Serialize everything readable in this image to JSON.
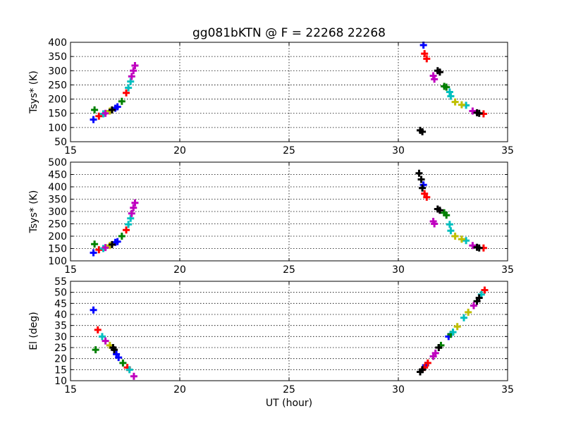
{
  "chart_data": {
    "type": "scatter",
    "title": "gg081bKTN @ F = 22268 22268",
    "marker": "plus",
    "xlabel": "UT (hour)",
    "color_cycle": [
      "#0000ff",
      "#008000",
      "#ff0000",
      "#00bfbf",
      "#bf00bf",
      "#bfbf00",
      "#000000"
    ],
    "panels": [
      {
        "ylabel": "Tsys* (K)",
        "xlim": [
          15,
          35
        ],
        "ylim": [
          50,
          400
        ],
        "xticks": [
          15,
          20,
          25,
          30,
          35
        ],
        "yticks": [
          50,
          100,
          150,
          200,
          250,
          300,
          350,
          400
        ],
        "grid": true,
        "series": [
          {
            "color": "#0000ff",
            "points": [
              [
                16.05,
                128
              ],
              [
                17.05,
                168
              ],
              [
                17.15,
                173
              ],
              [
                31.15,
                390
              ]
            ]
          },
          {
            "color": "#008000",
            "points": [
              [
                16.1,
                162
              ],
              [
                17.35,
                192
              ],
              [
                32.1,
                245
              ],
              [
                32.2,
                242
              ]
            ]
          },
          {
            "color": "#ff0000",
            "points": [
              [
                16.3,
                140
              ],
              [
                17.55,
                222
              ],
              [
                31.2,
                360
              ],
              [
                31.3,
                342
              ],
              [
                33.9,
                148
              ]
            ]
          },
          {
            "color": "#00bfbf",
            "points": [
              [
                16.5,
                148
              ],
              [
                17.65,
                240
              ],
              [
                17.75,
                262
              ],
              [
                32.35,
                225
              ],
              [
                32.4,
                210
              ],
              [
                33.1,
                178
              ]
            ]
          },
          {
            "color": "#bf00bf",
            "points": [
              [
                16.6,
                150
              ],
              [
                17.8,
                280
              ],
              [
                17.88,
                300
              ],
              [
                17.95,
                318
              ],
              [
                31.6,
                282
              ],
              [
                31.65,
                270
              ],
              [
                33.4,
                158
              ]
            ]
          },
          {
            "color": "#bfbf00",
            "points": [
              [
                16.8,
                158
              ],
              [
                32.6,
                190
              ],
              [
                32.9,
                180
              ]
            ]
          },
          {
            "color": "#000000",
            "points": [
              [
                16.9,
                162
              ],
              [
                31.0,
                90
              ],
              [
                31.1,
                85
              ],
              [
                31.8,
                300
              ],
              [
                31.9,
                295
              ],
              [
                33.6,
                152
              ],
              [
                33.7,
                150
              ]
            ]
          }
        ]
      },
      {
        "ylabel": "Tsys* (K)",
        "xlim": [
          15,
          35
        ],
        "ylim": [
          100,
          500
        ],
        "xticks": [
          15,
          20,
          25,
          30,
          35
        ],
        "yticks": [
          100,
          150,
          200,
          250,
          300,
          350,
          400,
          450,
          500
        ],
        "grid": true,
        "series": [
          {
            "color": "#0000ff",
            "points": [
              [
                16.05,
                133
              ],
              [
                17.05,
                175
              ],
              [
                17.15,
                178
              ],
              [
                31.15,
                408
              ]
            ]
          },
          {
            "color": "#008000",
            "points": [
              [
                16.1,
                168
              ],
              [
                17.35,
                200
              ],
              [
                32.1,
                295
              ],
              [
                32.2,
                285
              ]
            ]
          },
          {
            "color": "#ff0000",
            "points": [
              [
                16.3,
                145
              ],
              [
                17.55,
                225
              ],
              [
                31.2,
                372
              ],
              [
                31.3,
                358
              ],
              [
                33.9,
                152
              ]
            ]
          },
          {
            "color": "#00bfbf",
            "points": [
              [
                16.5,
                150
              ],
              [
                17.65,
                248
              ],
              [
                17.75,
                272
              ],
              [
                32.35,
                248
              ],
              [
                32.4,
                222
              ],
              [
                33.1,
                182
              ]
            ]
          },
          {
            "color": "#bf00bf",
            "points": [
              [
                16.6,
                154
              ],
              [
                17.8,
                292
              ],
              [
                17.88,
                315
              ],
              [
                17.95,
                335
              ],
              [
                31.6,
                260
              ],
              [
                31.65,
                250
              ],
              [
                33.4,
                162
              ]
            ]
          },
          {
            "color": "#bfbf00",
            "points": [
              [
                16.8,
                162
              ],
              [
                32.6,
                200
              ],
              [
                32.9,
                188
              ]
            ]
          },
          {
            "color": "#000000",
            "points": [
              [
                16.9,
                166
              ],
              [
                30.95,
                455
              ],
              [
                31.05,
                430
              ],
              [
                31.1,
                395
              ],
              [
                31.8,
                310
              ],
              [
                31.9,
                305
              ],
              [
                33.6,
                155
              ],
              [
                33.7,
                152
              ]
            ]
          }
        ]
      },
      {
        "ylabel": "El (deg)",
        "xlim": [
          15,
          35
        ],
        "ylim": [
          10,
          55
        ],
        "xticks": [
          15,
          20,
          25,
          30,
          35
        ],
        "yticks": [
          10,
          15,
          20,
          25,
          30,
          35,
          40,
          45,
          50,
          55
        ],
        "grid": true,
        "series": [
          {
            "color": "#0000ff",
            "points": [
              [
                16.05,
                42
              ],
              [
                17.1,
                22
              ],
              [
                17.2,
                20.5
              ],
              [
                31.25,
                17
              ],
              [
                32.3,
                30
              ]
            ]
          },
          {
            "color": "#008000",
            "points": [
              [
                16.15,
                24
              ],
              [
                17.4,
                18
              ],
              [
                31.95,
                26
              ],
              [
                32.4,
                31
              ]
            ]
          },
          {
            "color": "#ff0000",
            "points": [
              [
                16.25,
                33
              ],
              [
                17.6,
                16
              ],
              [
                31.2,
                16
              ],
              [
                31.35,
                18
              ],
              [
                33.95,
                51
              ]
            ]
          },
          {
            "color": "#00bfbf",
            "points": [
              [
                16.45,
                30
              ],
              [
                17.7,
                15
              ],
              [
                32.5,
                32
              ],
              [
                33.0,
                38.5
              ],
              [
                33.8,
                49
              ]
            ]
          },
          {
            "color": "#bf00bf",
            "points": [
              [
                16.6,
                28
              ],
              [
                17.9,
                12
              ],
              [
                31.6,
                21
              ],
              [
                31.7,
                22.5
              ],
              [
                33.45,
                44
              ]
            ]
          },
          {
            "color": "#bfbf00",
            "points": [
              [
                16.8,
                26
              ],
              [
                32.7,
                34.5
              ],
              [
                33.2,
                41
              ]
            ]
          },
          {
            "color": "#000000",
            "points": [
              [
                16.95,
                25
              ],
              [
                17.0,
                24
              ],
              [
                31.0,
                14
              ],
              [
                31.1,
                15
              ],
              [
                31.85,
                25
              ],
              [
                33.6,
                46
              ],
              [
                33.7,
                47.5
              ]
            ]
          }
        ]
      }
    ]
  }
}
